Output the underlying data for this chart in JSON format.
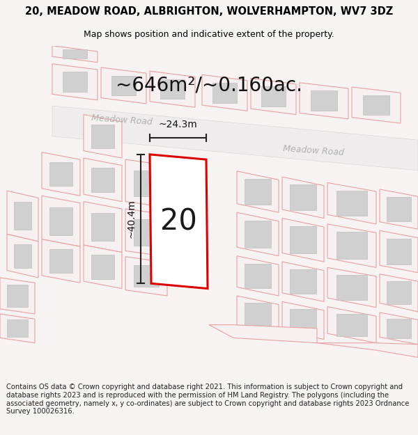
{
  "title_line1": "20, MEADOW ROAD, ALBRIGHTON, WOLVERHAMPTON, WV7 3DZ",
  "title_line2": "Map shows position and indicative extent of the property.",
  "area_text": "~646m²/~0.160ac.",
  "number_label": "20",
  "width_label": "~24.3m",
  "height_label": "~40.4m",
  "road_label1": "Meadow Road",
  "road_label2": "Meadow Road",
  "footer_text": "Contains OS data © Crown copyright and database right 2021. This information is subject to Crown copyright and database rights 2023 and is reproduced with the permission of HM Land Registry. The polygons (including the associated geometry, namely x, y co-ordinates) are subject to Crown copyright and database rights 2023 Ordnance Survey 100026316.",
  "map_bg": "#f7f3f3",
  "plot_outline_color": "#dd0000",
  "dim_line_color": "#222222",
  "road_text_color": "#b0b0b0",
  "title_fontsize": 10.5,
  "subtitle_fontsize": 9,
  "area_fontsize": 20,
  "number_fontsize": 30,
  "dim_fontsize": 10,
  "footer_fontsize": 7.2,
  "pink_ec": "#e8a0a0",
  "pink_fc": "#f7f0f0",
  "grey_fc": "#d0d0d0",
  "grey_ec": "#c0c0c0",
  "road_fc": "#eeeeee",
  "road_ec": "#dddddd"
}
